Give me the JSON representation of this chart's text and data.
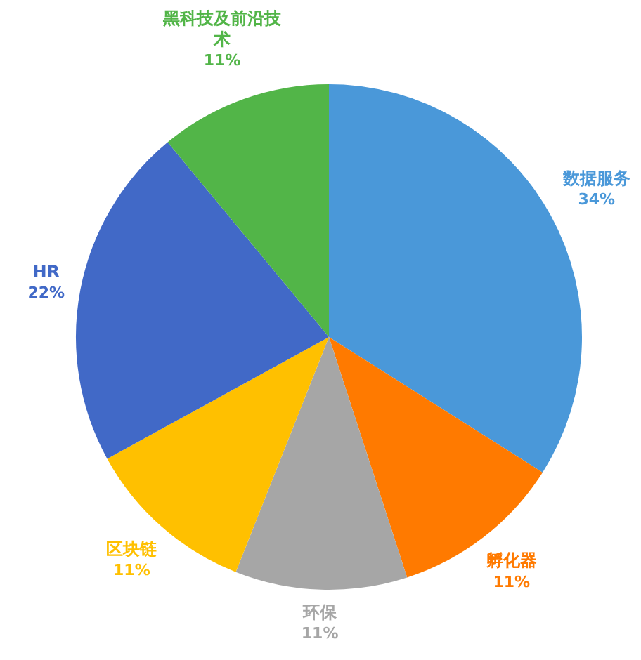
{
  "chart_data": {
    "type": "pie",
    "categories": [
      "数据服务",
      "孵化器",
      "环保",
      "区块链",
      "HR",
      "黑科技及前沿技术"
    ],
    "values": [
      34,
      11,
      11,
      11,
      22,
      11
    ],
    "colors": [
      "#4a98d9",
      "#ff7a00",
      "#a6a6a6",
      "#ffc000",
      "#4169c7",
      "#52b548"
    ],
    "value_labels": [
      "34%",
      "11%",
      "11%",
      "11%",
      "22%",
      "11%"
    ]
  }
}
